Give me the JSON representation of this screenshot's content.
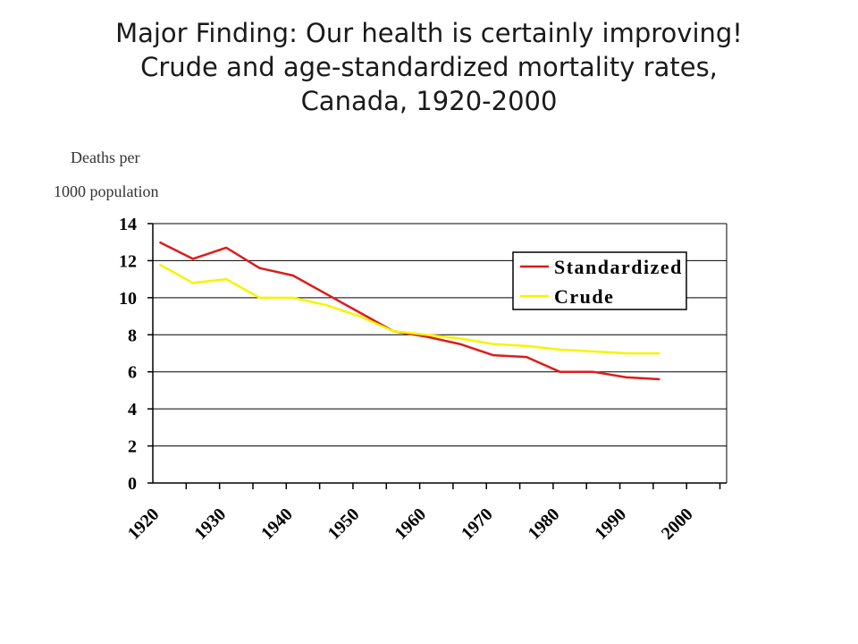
{
  "title": {
    "line1": "Major Finding:  Our health is certainly improving!",
    "line2": "Crude and age-standardized mortality rates,",
    "line3": "Canada, 1920-2000"
  },
  "chart_data": {
    "type": "line",
    "title": "Crude and age-standardized mortality rates, Canada, 1920-2000",
    "ylabel_line1": "Deaths per",
    "ylabel_line2": "1000 population",
    "xlabel": "",
    "xlim": [
      1920,
      2006
    ],
    "ylim": [
      0,
      14
    ],
    "yticks": [
      0,
      2,
      4,
      6,
      8,
      10,
      12,
      14
    ],
    "xticks": [
      1920,
      1930,
      1940,
      1950,
      1960,
      1970,
      1980,
      1990,
      2000
    ],
    "grid": true,
    "legend_position": "top-right",
    "x": [
      1921,
      1926,
      1931,
      1936,
      1941,
      1946,
      1951,
      1956,
      1961,
      1966,
      1971,
      1976,
      1981,
      1986,
      1991,
      1996
    ],
    "series": [
      {
        "name": "Standardized",
        "color": "#dd1c1c",
        "values": [
          13.0,
          12.1,
          12.7,
          11.6,
          11.2,
          10.2,
          9.2,
          8.2,
          7.9,
          7.5,
          6.9,
          6.8,
          6.0,
          6.0,
          5.7,
          5.6
        ]
      },
      {
        "name": "Crude",
        "color": "#f5f500",
        "values": [
          11.8,
          10.8,
          11.0,
          10.0,
          10.0,
          9.6,
          9.0,
          8.2,
          8.0,
          7.8,
          7.5,
          7.4,
          7.2,
          7.1,
          7.0,
          7.0
        ]
      }
    ]
  }
}
